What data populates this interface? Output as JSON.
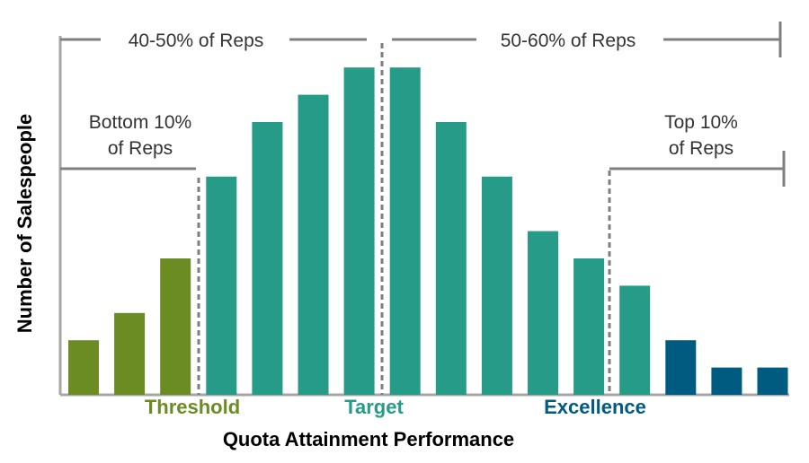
{
  "chart_data": {
    "type": "bar",
    "xlabel": "Quota Attainment Performance",
    "ylabel": "Number of Salespeople",
    "values": [
      2,
      3,
      5,
      8,
      10,
      11,
      12,
      12,
      10,
      8,
      6,
      5,
      4,
      2,
      1,
      1
    ],
    "groups": [
      {
        "name": "Threshold",
        "color": "#6a8c22",
        "start": 0,
        "end": 2
      },
      {
        "name": "Target",
        "color": "#269b88",
        "start": 3,
        "end": 12
      },
      {
        "name": "Excellence",
        "color": "#005b80",
        "start": 13,
        "end": 15
      }
    ],
    "annotations": {
      "bottom": [
        "Bottom 10%",
        "of Reps"
      ],
      "middle_left": "40-50% of Reps",
      "middle_right": "50-60% of Reps",
      "top": [
        "Top 10%",
        "of Reps"
      ]
    },
    "grid": false,
    "legend": "none"
  },
  "colors": {
    "bracket": "#7f7f7f",
    "axis": "#a6a6a6"
  }
}
